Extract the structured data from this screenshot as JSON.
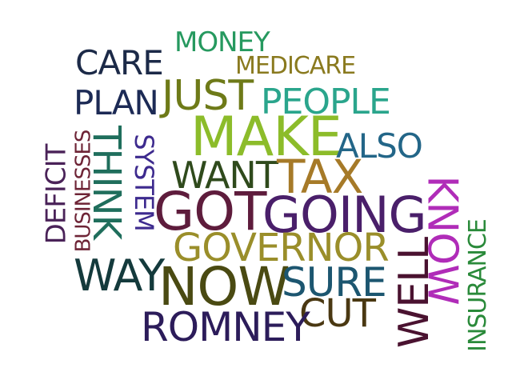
{
  "words": {
    "money": {
      "text": "MONEY",
      "color": "#26995f"
    },
    "medicare": {
      "text": "MEDICARE",
      "color": "#8a7a1f"
    },
    "care": {
      "text": "CARE",
      "color": "#1c2a48"
    },
    "plan": {
      "text": "PLAN",
      "color": "#1c2a55"
    },
    "just": {
      "text": "JUST",
      "color": "#6e7a18"
    },
    "people": {
      "text": "PEOPLE",
      "color": "#2aa58c"
    },
    "make": {
      "text": "MAKE",
      "color": "#8cbc2a"
    },
    "also": {
      "text": "ALSO",
      "color": "#236688"
    },
    "think": {
      "text": "THINK",
      "color": "#1f6e5c"
    },
    "system": {
      "text": "SYSTEM",
      "color": "#3d2a8e"
    },
    "deficit": {
      "text": "DEFICIT",
      "color": "#4a2258"
    },
    "businesses": {
      "text": "BUSINESSES",
      "color": "#6e2436"
    },
    "want": {
      "text": "WANT",
      "color": "#2f4a1c"
    },
    "tax": {
      "text": "TAX",
      "color": "#a67a28"
    },
    "know": {
      "text": "KNOW",
      "color": "#b02cb8"
    },
    "got": {
      "text": "GOT",
      "color": "#5e1c3c"
    },
    "going": {
      "text": "GOING",
      "color": "#4a1f6a"
    },
    "governor": {
      "text": "GOVERNOR",
      "color": "#9a8e2a"
    },
    "insurance": {
      "text": "INSURANCE",
      "color": "#2a8a3a"
    },
    "way": {
      "text": "WAY",
      "color": "#143a3c"
    },
    "now": {
      "text": "NOW",
      "color": "#4a4a12"
    },
    "sure": {
      "text": "SURE",
      "color": "#1c5670"
    },
    "well": {
      "text": "WELL",
      "color": "#4a1230"
    },
    "cut": {
      "text": "CUT",
      "color": "#4a3812"
    },
    "romney": {
      "text": "ROMNEY",
      "color": "#2c1c5a"
    }
  }
}
